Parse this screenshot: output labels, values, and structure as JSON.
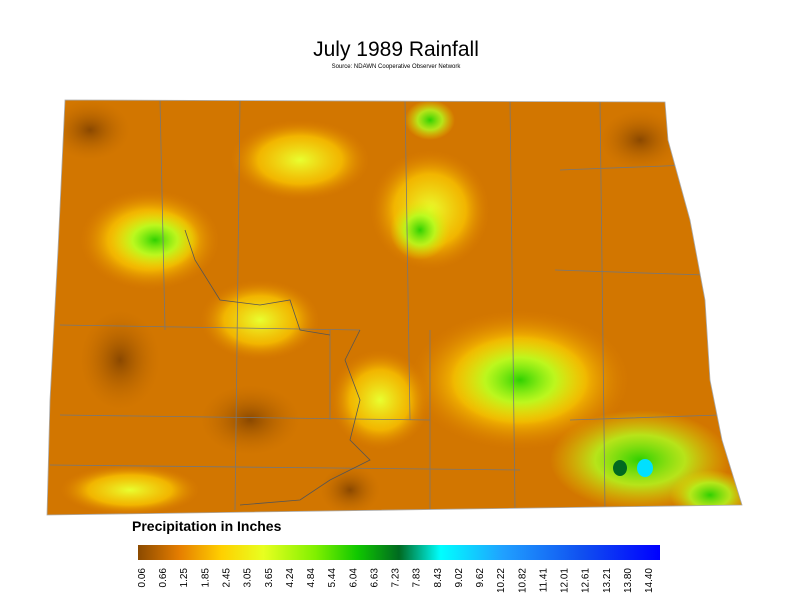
{
  "title": "July 1989 Rainfall",
  "subtitle": "Source: NDAWN Cooperative Observer Network",
  "legend": {
    "title": "Precipitation in Inches",
    "ticks": [
      0.06,
      0.66,
      1.25,
      1.85,
      2.45,
      3.05,
      3.65,
      4.24,
      4.84,
      5.44,
      6.04,
      6.63,
      7.23,
      7.83,
      8.43,
      9.02,
      9.62,
      10.22,
      10.82,
      11.41,
      12.01,
      12.61,
      13.21,
      {
        "value": 13.8,
        "label": "13.80"
      },
      {
        "value": 14.4,
        "label": "14.40"
      }
    ]
  }
}
